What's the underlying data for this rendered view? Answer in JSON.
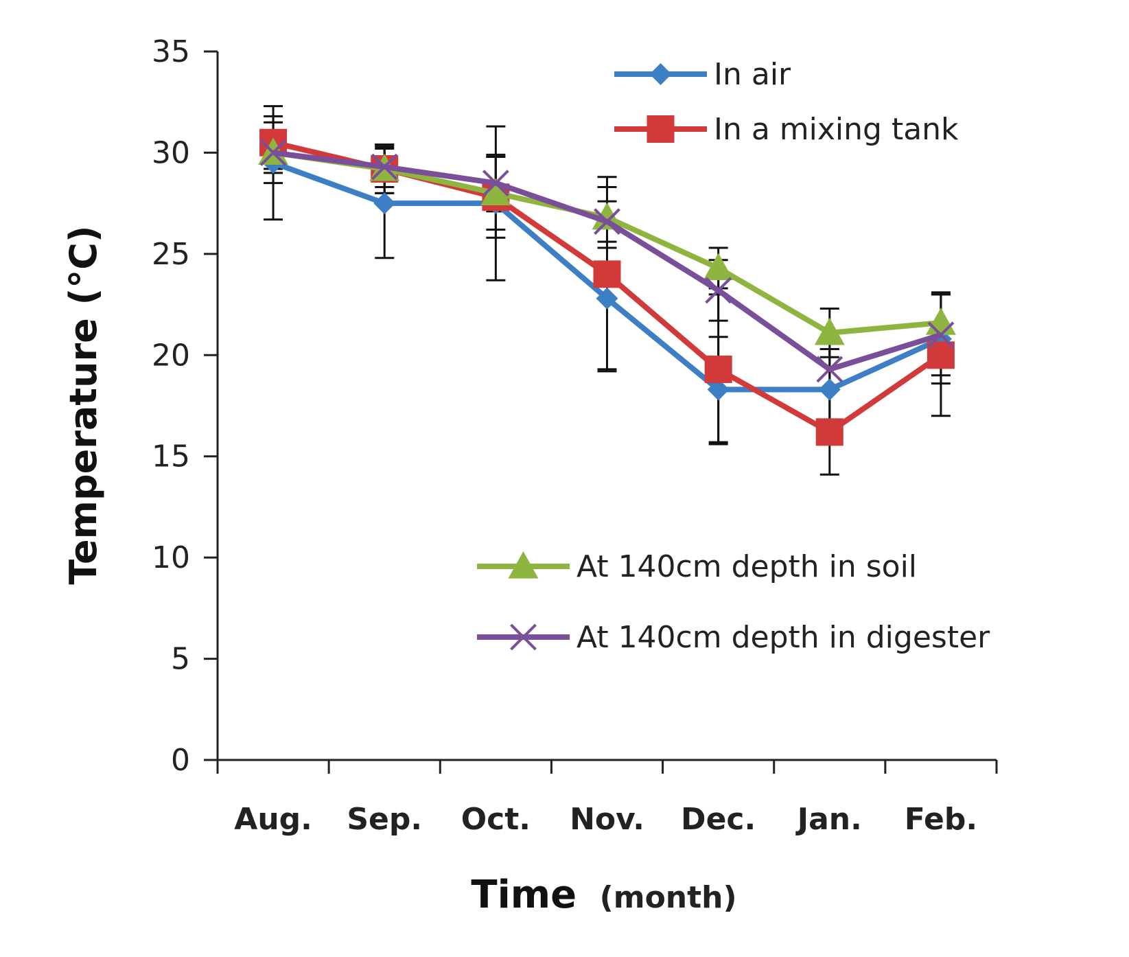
{
  "chart_data": {
    "type": "line",
    "title": "",
    "xlabel": "Time",
    "xlabel_unit": "(month)",
    "ylabel": "Temperature (°C)",
    "ylim": [
      0,
      35
    ],
    "yticks": [
      "0",
      "5",
      "10",
      "15",
      "20",
      "25",
      "30",
      "35"
    ],
    "categories": [
      "Aug.",
      "Sep.",
      "Oct.",
      "Nov.",
      "Dec.",
      "Jan.",
      "Feb."
    ],
    "grid": false,
    "legend_placement": "top-right and center-right",
    "series": [
      {
        "name": "In air",
        "color": "#3d7fc4",
        "marker": "diamond",
        "values": [
          29.5,
          27.5,
          27.5,
          22.8,
          18.3,
          18.3,
          20.8
        ],
        "errors": [
          2.8,
          2.7,
          3.8,
          3.5,
          2.6,
          2.0,
          2.2
        ]
      },
      {
        "name": "In a mixing tank",
        "color": "#d23a3a",
        "marker": "square",
        "values": [
          30.5,
          29.2,
          27.8,
          24.0,
          19.3,
          16.2,
          20.0
        ],
        "errors": [
          1.3,
          1.2,
          2.0,
          4.8,
          3.7,
          2.1,
          3.0
        ]
      },
      {
        "name": "At 140cm depth in soil",
        "color": "#8db53f",
        "marker": "triangle",
        "values": [
          30.0,
          29.2,
          28.0,
          26.8,
          24.3,
          21.1,
          21.6
        ],
        "errors": [
          1.5,
          1.2,
          1.8,
          1.5,
          1.0,
          1.2,
          1.5
        ]
      },
      {
        "name": "At 140cm depth in digester",
        "color": "#7a4f9a",
        "marker": "x",
        "values": [
          30.0,
          29.3,
          28.5,
          26.6,
          23.2,
          19.3,
          21.0
        ],
        "errors": [
          1.0,
          1.0,
          1.4,
          1.0,
          1.5,
          1.0,
          2.0
        ]
      }
    ]
  }
}
